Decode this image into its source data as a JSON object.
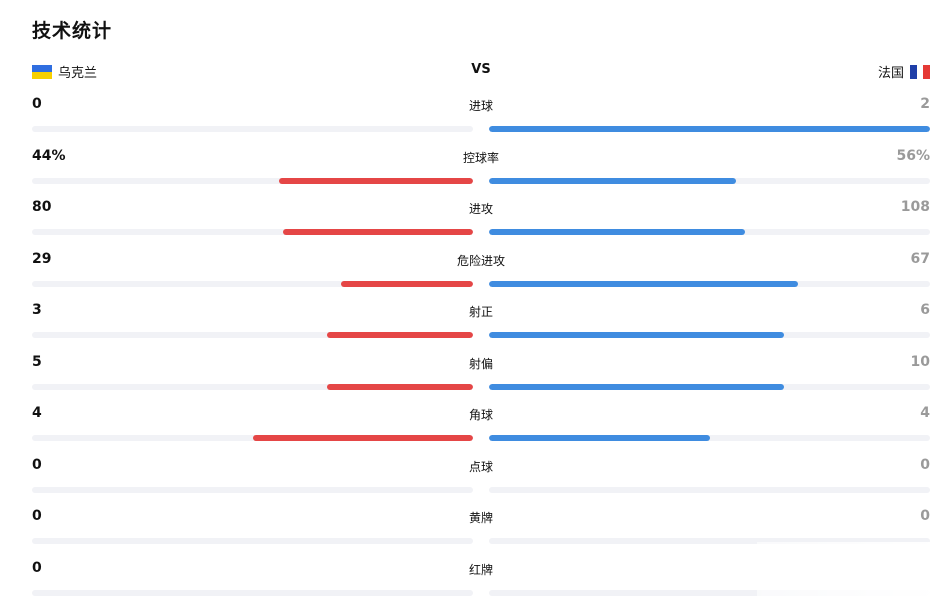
{
  "header": {
    "title": "技术统计",
    "vs": "VS"
  },
  "teams": {
    "home": {
      "name": "乌克兰",
      "flag_icon": "ukraine-flag-icon",
      "flag_colors": [
        "#2f6ee0",
        "#f7d000"
      ]
    },
    "away": {
      "name": "法国",
      "flag_icon": "france-flag-icon",
      "flag_colors": [
        "#1f3fa8",
        "#ffffff",
        "#e53935"
      ]
    }
  },
  "colors": {
    "home_bar": "#e54646",
    "away_bar": "#3f8ce0",
    "track": "#f1f2f6"
  },
  "stats": [
    {
      "label": "进球",
      "home": "0",
      "away": "2",
      "home_bar": 0.0,
      "away_bar": 1.0
    },
    {
      "label": "控球率",
      "home": "44%",
      "away": "56%",
      "home_bar": 0.44,
      "away_bar": 0.56
    },
    {
      "label": "进攻",
      "home": "80",
      "away": "108",
      "home_bar": 0.43,
      "away_bar": 0.58
    },
    {
      "label": "危险进攻",
      "home": "29",
      "away": "67",
      "home_bar": 0.3,
      "away_bar": 0.7
    },
    {
      "label": "射正",
      "home": "3",
      "away": "6",
      "home_bar": 0.33,
      "away_bar": 0.67
    },
    {
      "label": "射偏",
      "home": "5",
      "away": "10",
      "home_bar": 0.33,
      "away_bar": 0.67
    },
    {
      "label": "角球",
      "home": "4",
      "away": "4",
      "home_bar": 0.5,
      "away_bar": 0.5
    },
    {
      "label": "点球",
      "home": "0",
      "away": "0",
      "home_bar": 0.0,
      "away_bar": 0.0
    },
    {
      "label": "黄牌",
      "home": "0",
      "away": "0",
      "home_bar": 0.0,
      "away_bar": 0.0
    },
    {
      "label": "红牌",
      "home": "0",
      "away": "",
      "home_bar": 0.0,
      "away_bar": 0.0
    }
  ]
}
